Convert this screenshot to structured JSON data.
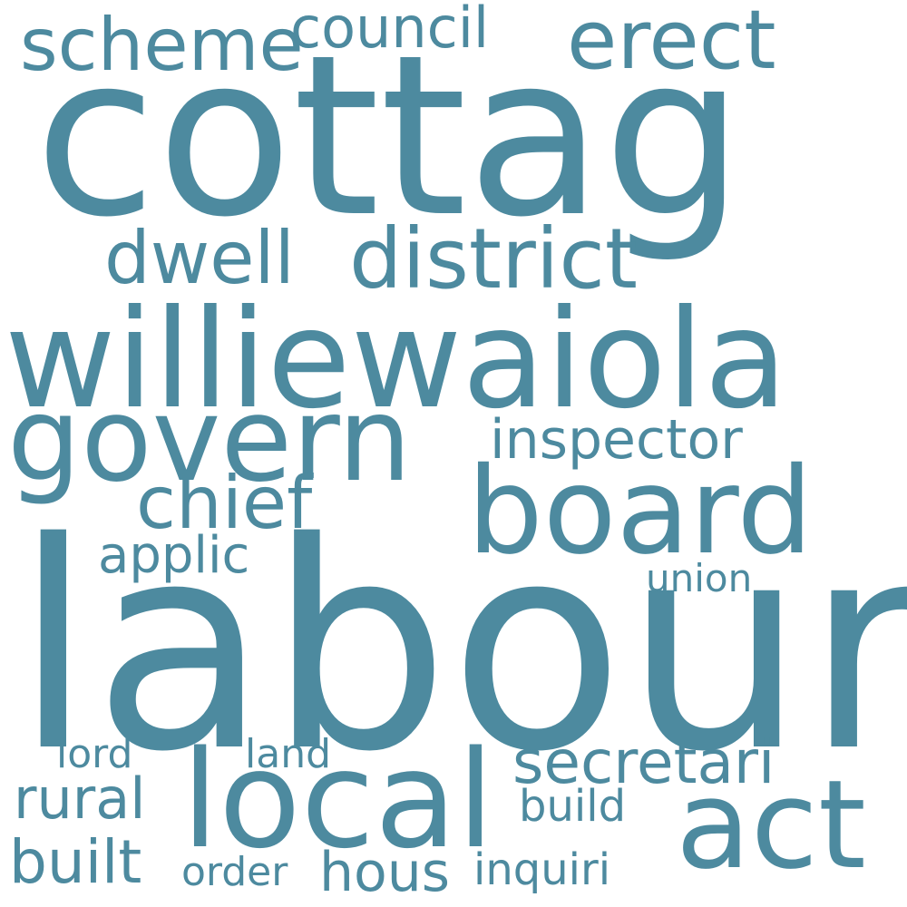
{
  "word_cloud": {
    "color": "#4d8a9f",
    "words": [
      {
        "id": "cottag",
        "text": "cottag"
      },
      {
        "id": "labour",
        "text": "labour"
      },
      {
        "id": "williewaiola",
        "text": "williewaiola"
      },
      {
        "id": "govern",
        "text": "govern"
      },
      {
        "id": "board",
        "text": "board"
      },
      {
        "id": "local",
        "text": "local"
      },
      {
        "id": "district",
        "text": "district"
      },
      {
        "id": "act",
        "text": "act"
      },
      {
        "id": "scheme",
        "text": "scheme"
      },
      {
        "id": "erect",
        "text": "erect"
      },
      {
        "id": "dwell",
        "text": "dwell"
      },
      {
        "id": "chief",
        "text": "chief"
      },
      {
        "id": "council",
        "text": "council"
      },
      {
        "id": "secretari",
        "text": "secretari"
      },
      {
        "id": "inspector",
        "text": "inspector"
      },
      {
        "id": "applic",
        "text": "applic"
      },
      {
        "id": "rural",
        "text": "rural"
      },
      {
        "id": "built",
        "text": "built"
      },
      {
        "id": "hous",
        "text": "hous"
      },
      {
        "id": "inquiri",
        "text": "inquiri"
      },
      {
        "id": "union",
        "text": "union"
      },
      {
        "id": "lord",
        "text": "lord"
      },
      {
        "id": "land",
        "text": "land"
      },
      {
        "id": "build",
        "text": "build"
      },
      {
        "id": "order",
        "text": "order"
      }
    ]
  }
}
